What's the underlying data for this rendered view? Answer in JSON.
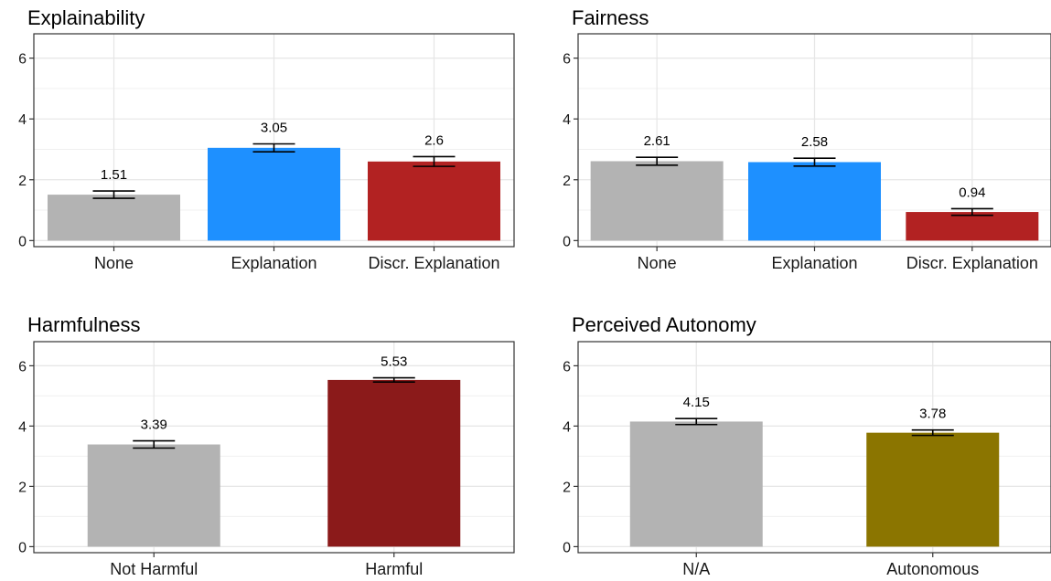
{
  "chart_data": [
    {
      "type": "bar",
      "title": "Explainability",
      "categories": [
        "None",
        "Explanation",
        "Discr. Explanation"
      ],
      "values": [
        1.51,
        3.05,
        2.6
      ],
      "value_labels": [
        "1.51",
        "3.05",
        "2.6"
      ],
      "errors": [
        0.12,
        0.13,
        0.16
      ],
      "colors": [
        "#b3b3b3",
        "#1e90ff",
        "#b22222"
      ],
      "yticks": [
        0,
        2,
        4,
        6
      ],
      "ylim": [
        -0.2,
        6.8
      ],
      "grid": true
    },
    {
      "type": "bar",
      "title": "Fairness",
      "categories": [
        "None",
        "Explanation",
        "Discr. Explanation"
      ],
      "values": [
        2.61,
        2.58,
        0.94
      ],
      "value_labels": [
        "2.61",
        "2.58",
        "0.94"
      ],
      "errors": [
        0.13,
        0.13,
        0.11
      ],
      "colors": [
        "#b3b3b3",
        "#1e90ff",
        "#b22222"
      ],
      "yticks": [
        0,
        2,
        4,
        6
      ],
      "ylim": [
        -0.2,
        6.8
      ],
      "grid": true
    },
    {
      "type": "bar",
      "title": "Harmfulness",
      "categories": [
        "Not Harmful",
        "Harmful"
      ],
      "values": [
        3.39,
        5.53
      ],
      "value_labels": [
        "3.39",
        "5.53"
      ],
      "errors": [
        0.12,
        0.07
      ],
      "colors": [
        "#b3b3b3",
        "#8b1a1a"
      ],
      "yticks": [
        0,
        2,
        4,
        6
      ],
      "ylim": [
        -0.2,
        6.8
      ],
      "grid": true
    },
    {
      "type": "bar",
      "title": "Perceived Autonomy",
      "categories": [
        "N/A",
        "Autonomous"
      ],
      "values": [
        4.15,
        3.78
      ],
      "value_labels": [
        "4.15",
        "3.78"
      ],
      "errors": [
        0.1,
        0.09
      ],
      "colors": [
        "#b3b3b3",
        "#8b7500"
      ],
      "yticks": [
        0,
        2,
        4,
        6
      ],
      "ylim": [
        -0.2,
        6.8
      ],
      "grid": true
    }
  ]
}
